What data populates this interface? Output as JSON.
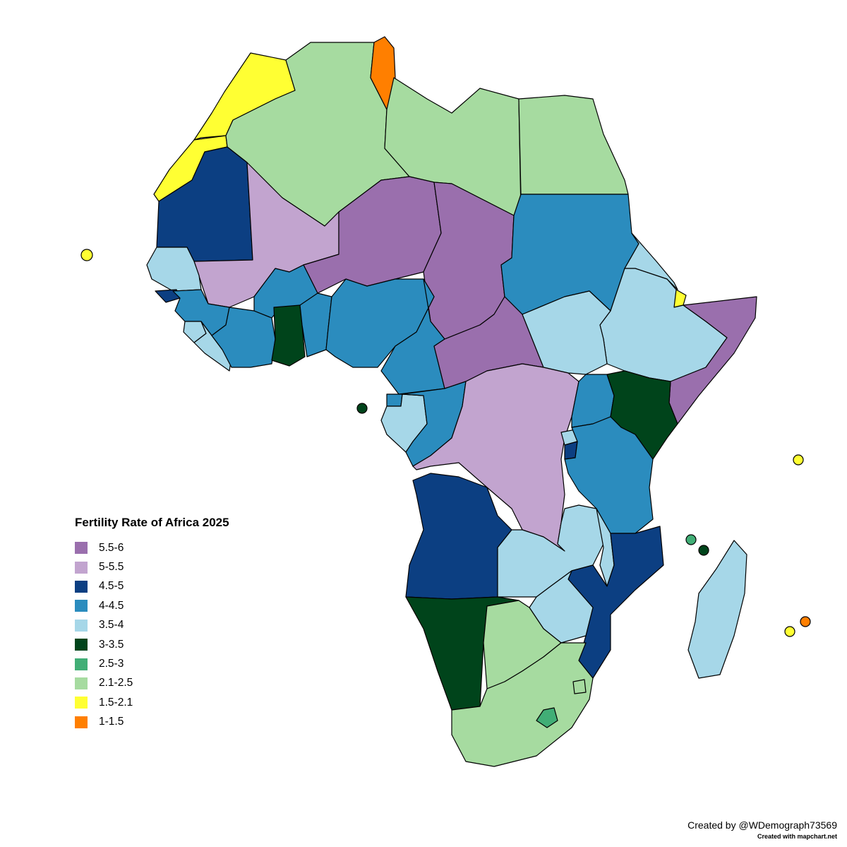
{
  "legend": {
    "title": "Fertility Rate of Africa 2025",
    "items": [
      {
        "label": "5.5-6",
        "color": "#9a6fad"
      },
      {
        "label": "5-5.5",
        "color": "#c2a4cf"
      },
      {
        "label": "4.5-5",
        "color": "#0c3f82"
      },
      {
        "label": "4-4.5",
        "color": "#2b8cbe"
      },
      {
        "label": "3.5-4",
        "color": "#a6d7e8"
      },
      {
        "label": "3-3.5",
        "color": "#00441b"
      },
      {
        "label": "2.5-3",
        "color": "#41ae76"
      },
      {
        "label": "2.1-2.5",
        "color": "#a6dba0"
      },
      {
        "label": "1.5-2.1",
        "color": "#ffff33"
      },
      {
        "label": "1-1.5",
        "color": "#ff7f00"
      }
    ]
  },
  "credit": {
    "author": "Created by @WDemograph73569",
    "tool": "Created with mapchart.net"
  },
  "regions": [
    {
      "name": "morocco",
      "bin": 8
    },
    {
      "name": "western-sahara",
      "bin": 8
    },
    {
      "name": "algeria",
      "bin": 7
    },
    {
      "name": "tunisia",
      "bin": 9
    },
    {
      "name": "libya",
      "bin": 7
    },
    {
      "name": "egypt",
      "bin": 7
    },
    {
      "name": "mauritania",
      "bin": 2
    },
    {
      "name": "mali",
      "bin": 1
    },
    {
      "name": "niger",
      "bin": 0
    },
    {
      "name": "chad",
      "bin": 0
    },
    {
      "name": "sudan",
      "bin": 3
    },
    {
      "name": "eritrea",
      "bin": 4
    },
    {
      "name": "djibouti",
      "bin": 8
    },
    {
      "name": "ethiopia",
      "bin": 4
    },
    {
      "name": "somalia",
      "bin": 0
    },
    {
      "name": "senegal",
      "bin": 4
    },
    {
      "name": "guinea-bissau",
      "bin": 2
    },
    {
      "name": "guinea",
      "bin": 3
    },
    {
      "name": "sierra-leone",
      "bin": 4
    },
    {
      "name": "liberia",
      "bin": 4
    },
    {
      "name": "ivory-coast",
      "bin": 3
    },
    {
      "name": "burkina-faso",
      "bin": 3
    },
    {
      "name": "ghana",
      "bin": 5
    },
    {
      "name": "togo-benin",
      "bin": 3
    },
    {
      "name": "nigeria",
      "bin": 3
    },
    {
      "name": "cameroon",
      "bin": 3
    },
    {
      "name": "central-african-republic",
      "bin": 0
    },
    {
      "name": "south-sudan",
      "bin": 4
    },
    {
      "name": "equatorial-guinea",
      "bin": 3
    },
    {
      "name": "gabon",
      "bin": 4
    },
    {
      "name": "congo",
      "bin": 3
    },
    {
      "name": "dr-congo",
      "bin": 1
    },
    {
      "name": "uganda",
      "bin": 3
    },
    {
      "name": "kenya",
      "bin": 5
    },
    {
      "name": "rwanda",
      "bin": 4
    },
    {
      "name": "burundi",
      "bin": 2
    },
    {
      "name": "tanzania",
      "bin": 3
    },
    {
      "name": "angola",
      "bin": 2
    },
    {
      "name": "zambia",
      "bin": 4
    },
    {
      "name": "malawi",
      "bin": 4
    },
    {
      "name": "mozambique",
      "bin": 2
    },
    {
      "name": "zimbabwe",
      "bin": 4
    },
    {
      "name": "namibia",
      "bin": 5
    },
    {
      "name": "botswana",
      "bin": 7
    },
    {
      "name": "south-africa",
      "bin": 7
    },
    {
      "name": "eswatini",
      "bin": 7
    },
    {
      "name": "lesotho",
      "bin": 6
    },
    {
      "name": "madagascar",
      "bin": 4
    },
    {
      "name": "cape-verde",
      "bin": 8
    },
    {
      "name": "sao-tome",
      "bin": 5
    },
    {
      "name": "seychelles",
      "bin": 8
    },
    {
      "name": "comoros-1",
      "bin": 6
    },
    {
      "name": "comoros-2",
      "bin": 5
    },
    {
      "name": "reunion",
      "bin": 8
    },
    {
      "name": "mauritius",
      "bin": 9
    }
  ]
}
